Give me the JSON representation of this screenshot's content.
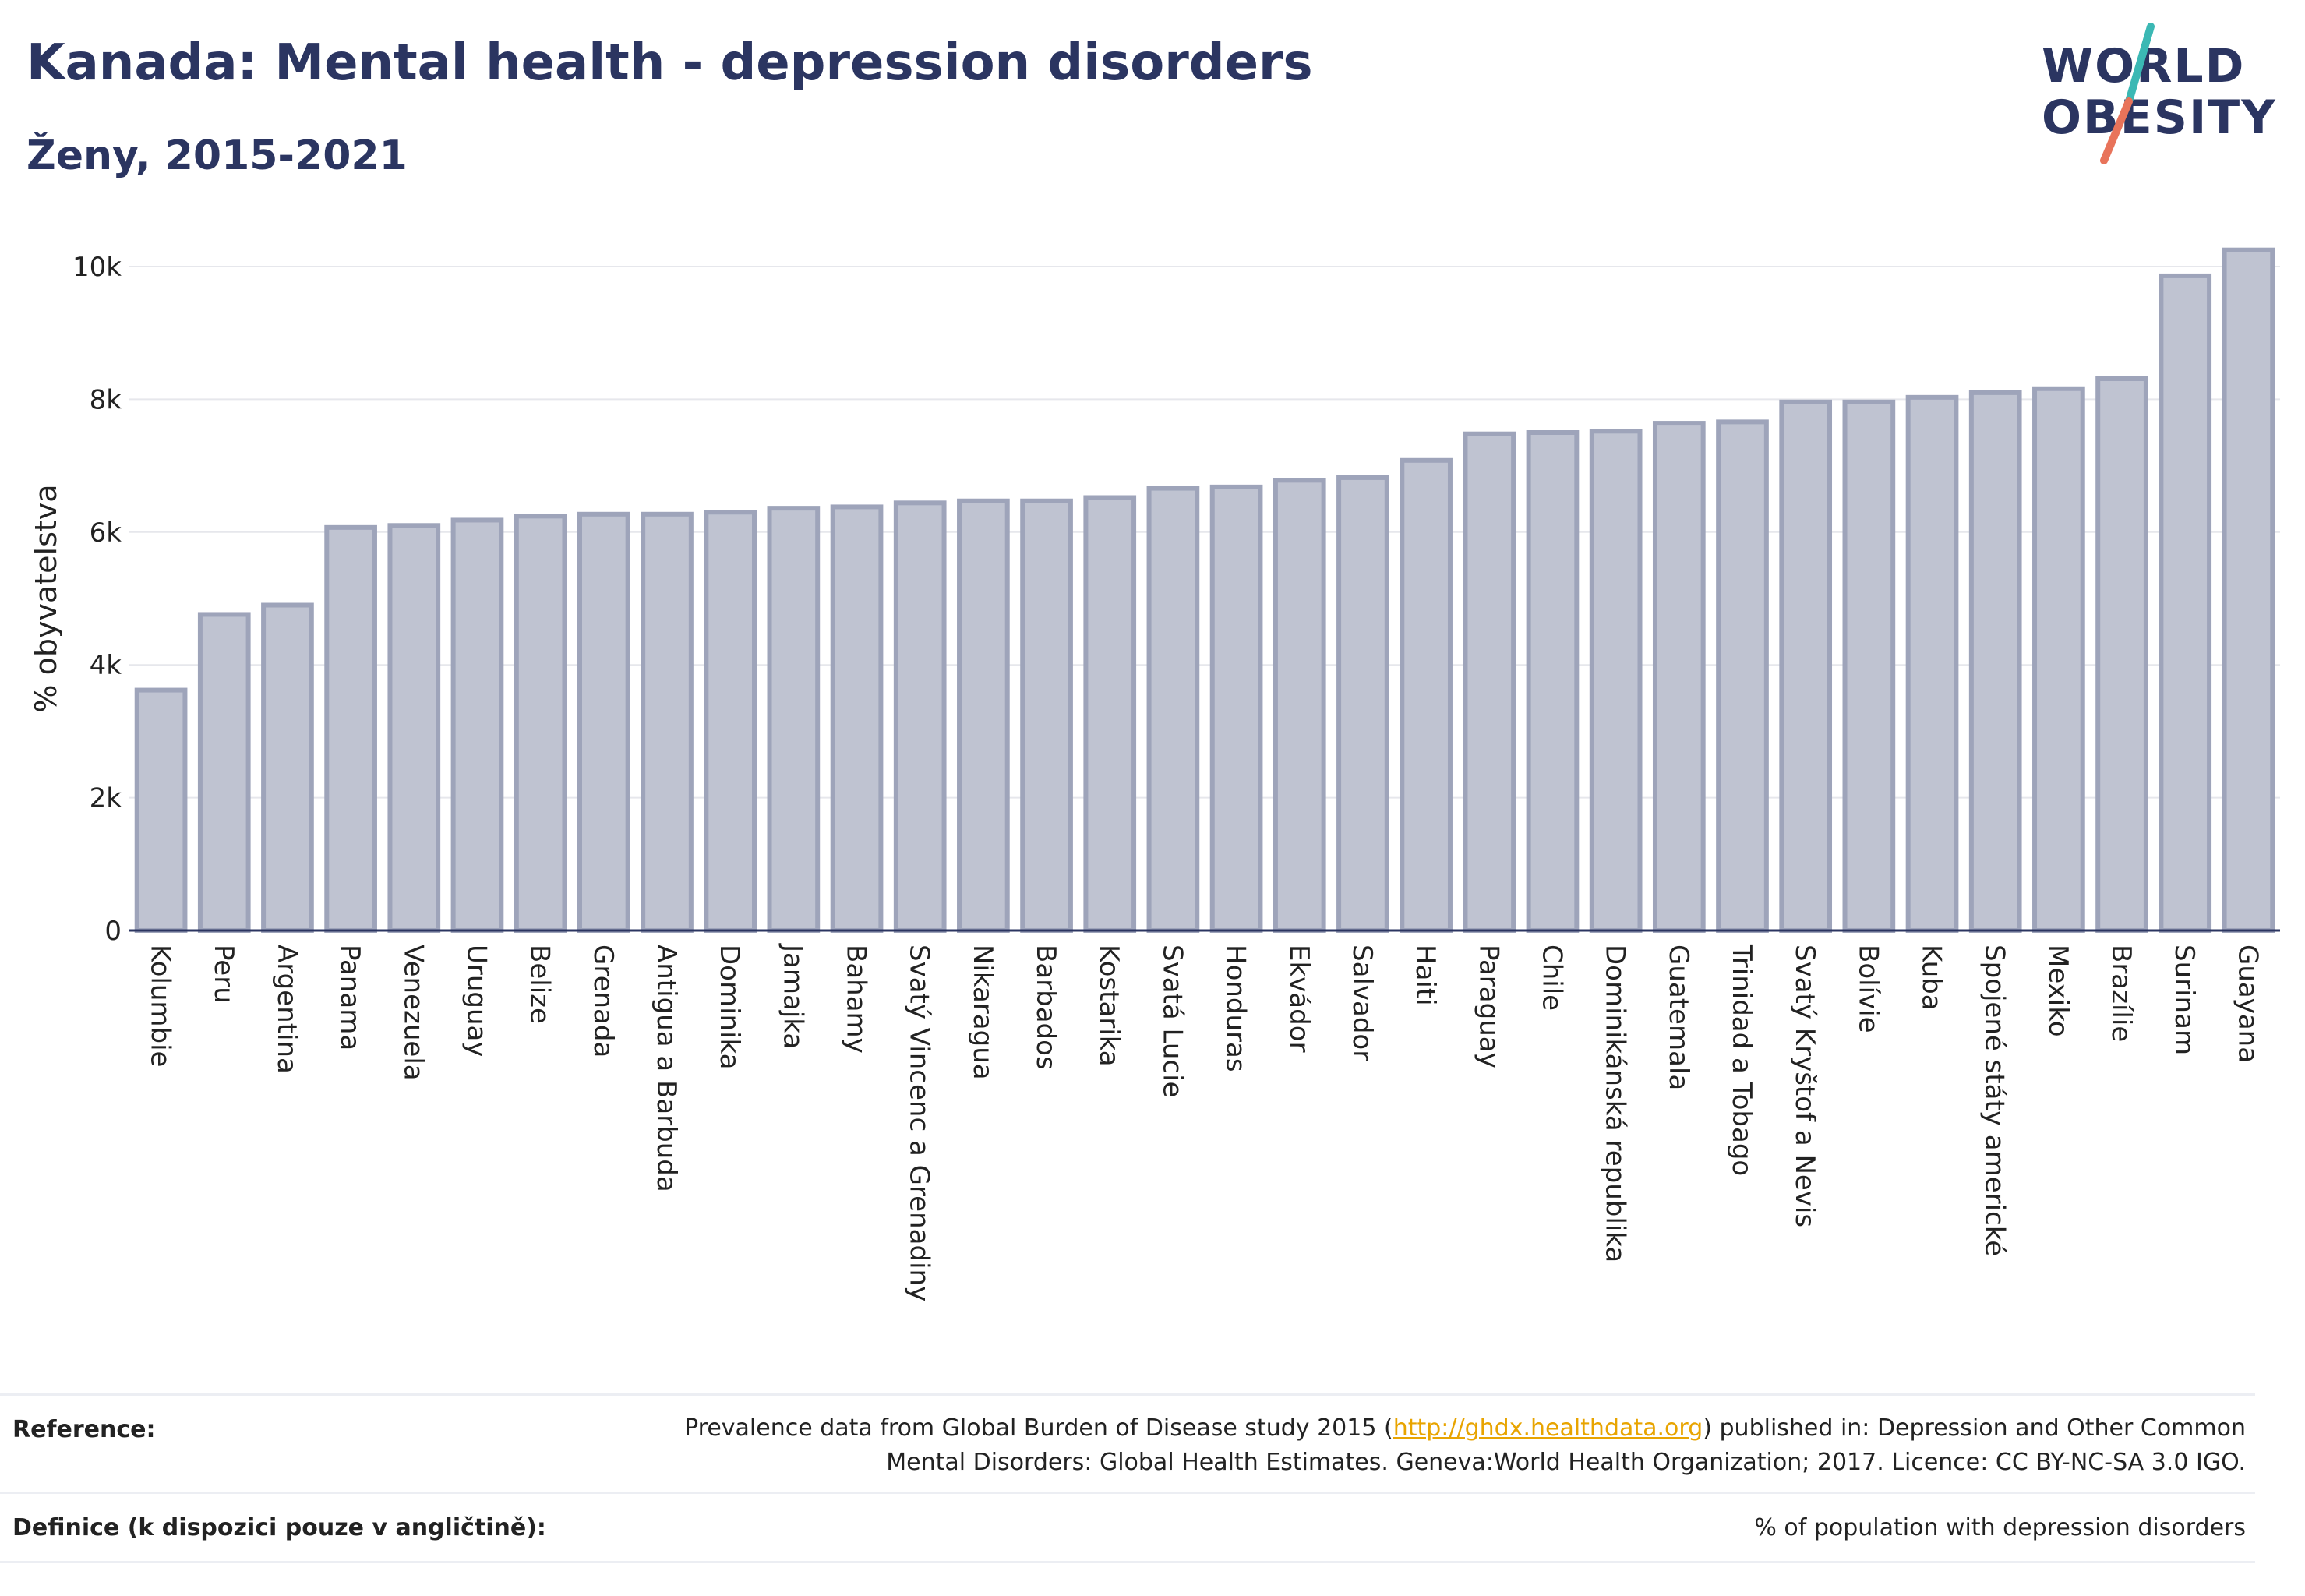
{
  "header": {
    "title": "Kanada: Mental health - depression disorders",
    "subtitle": "Ženy, 2015-2021"
  },
  "logo": {
    "line1": "WORLD",
    "line2": "OBESITY",
    "accent_teal": "#3bb8b4",
    "accent_coral": "#e8735a"
  },
  "chart_data": {
    "type": "bar",
    "ylabel": "% obyvatelstva",
    "ylim": [
      0,
      10500
    ],
    "yticks": [
      0,
      2000,
      4000,
      6000,
      8000,
      10000
    ],
    "ytick_labels": [
      "0",
      "2k",
      "4k",
      "6k",
      "8k",
      "10k"
    ],
    "grid": true,
    "categories": [
      "Kolumbie",
      "Peru",
      "Argentina",
      "Panama",
      "Venezuela",
      "Uruguay",
      "Belize",
      "Grenada",
      "Antigua a Barbuda",
      "Dominika",
      "Jamajka",
      "Bahamy",
      "Svatý Vincenc a Grenadiny",
      "Nikaragua",
      "Barbados",
      "Kostarika",
      "Svatá Lucie",
      "Honduras",
      "Ekvádor",
      "Salvador",
      "Haiti",
      "Paraguay",
      "Chile",
      "Dominikánská republika",
      "Guatemala",
      "Trinidad a Tobago",
      "Svatý Kryštof a Nevis",
      "Bolívie",
      "Kuba",
      "Spojené státy americké",
      "Mexiko",
      "Brazílie",
      "Surinam",
      "Guayana"
    ],
    "values": [
      3620,
      4760,
      4900,
      6070,
      6100,
      6180,
      6240,
      6270,
      6270,
      6300,
      6360,
      6380,
      6440,
      6470,
      6470,
      6520,
      6660,
      6680,
      6780,
      6820,
      7080,
      7480,
      7500,
      7520,
      7640,
      7660,
      7960,
      7960,
      8030,
      8100,
      8160,
      8310,
      9860,
      10250
    ],
    "bar_color": "#bfc3d1",
    "bar_edge_color": "#9ea4ba"
  },
  "footer": {
    "reference_label": "Reference:",
    "reference_line1_pre": "Prevalence data from Global Burden of Disease study 2015 (",
    "reference_link": "http://ghdx.healthdata.org",
    "reference_line1_post": ") published in: Depression and Other Common",
    "reference_line2": "Mental Disorders: Global Health Estimates. Geneva:World Health Organization; 2017. Licence: CC BY-NC-SA 3.0 IGO.",
    "definition_label": "Definice (k dispozici pouze v angličtině):",
    "definition_text": "% of population with depression disorders"
  }
}
